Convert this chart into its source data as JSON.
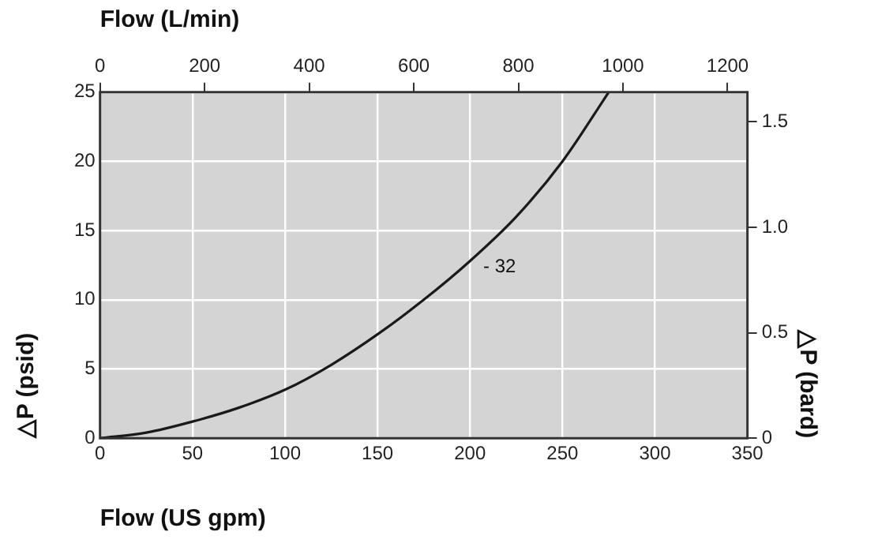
{
  "chart_data": {
    "type": "line",
    "xlabel": "Flow (US gpm)",
    "ylabel": "△P (psid)",
    "x2label": "Flow (L/min)",
    "y2label": "△P (bard)",
    "x": [
      0,
      25,
      50,
      75,
      100,
      125,
      150,
      175,
      200,
      225,
      250,
      275
    ],
    "series": [
      {
        "color": "#1a1a1a",
        "values": [
          0,
          0.4,
          1.2,
          2.2,
          3.5,
          5.3,
          7.5,
          10,
          12.8,
          16,
          20,
          25
        ]
      }
    ],
    "xlim": [
      0,
      350
    ],
    "xticks": [
      0,
      50,
      100,
      150,
      200,
      250,
      300,
      350
    ],
    "ylim": [
      0,
      25
    ],
    "yticks": [
      0,
      5,
      10,
      15,
      20,
      25
    ],
    "x2lim": [
      0,
      1238
    ],
    "x2ticks": [
      0,
      200,
      400,
      600,
      800,
      1000,
      1200
    ],
    "y2lim": [
      0,
      1.64
    ],
    "y2ticks": [
      0,
      0.5,
      {
        "value": 1,
        "label": "1.0"
      },
      1.5
    ],
    "annotations": [
      "- 32"
    ],
    "grid": true,
    "legend": false,
    "marker": "none",
    "line_style": "solid"
  }
}
